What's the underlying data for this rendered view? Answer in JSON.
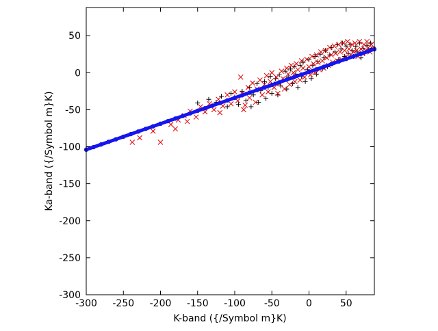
{
  "chart_data": {
    "type": "scatter",
    "xlabel": "K-band ({/Symbol m}K)",
    "ylabel": "Ka-band ({/Symbol m}K)",
    "xlim": [
      -300,
      88
    ],
    "ylim": [
      -300,
      88
    ],
    "x_ticks": [
      -300,
      -250,
      -200,
      -150,
      -100,
      -50,
      0,
      50
    ],
    "y_ticks": [
      -300,
      -250,
      -200,
      -150,
      -100,
      -50,
      0,
      50
    ],
    "x_tick_labels": [
      "-300",
      "-250",
      "-200",
      "-150",
      "-100",
      "-50",
      "0",
      "50"
    ],
    "y_tick_labels": [
      "-300",
      "-250",
      "-200",
      "-150",
      "-100",
      "-50",
      "0",
      "50"
    ],
    "grid": false,
    "legend": "none",
    "series": [
      {
        "marker": "plus",
        "color": "#000000",
        "points": [
          [
            -150,
            -41
          ],
          [
            -135,
            -36
          ],
          [
            -125,
            -40
          ],
          [
            -118,
            -32
          ],
          [
            -110,
            -46
          ],
          [
            -105,
            -28
          ],
          [
            -100,
            -33
          ],
          [
            -95,
            -43
          ],
          [
            -90,
            -25
          ],
          [
            -85,
            -38
          ],
          [
            -80,
            -20
          ],
          [
            -78,
            -46
          ],
          [
            -75,
            -30
          ],
          [
            -70,
            -15
          ],
          [
            -68,
            -40
          ],
          [
            -65,
            -24
          ],
          [
            -60,
            -12
          ],
          [
            -58,
            -35
          ],
          [
            -55,
            -20
          ],
          [
            -52,
            -5
          ],
          [
            -50,
            -28
          ],
          [
            -47,
            -15
          ],
          [
            -45,
            -8
          ],
          [
            -42,
            -30
          ],
          [
            -40,
            -3
          ],
          [
            -38,
            -18
          ],
          [
            -35,
            -10
          ],
          [
            -32,
            2
          ],
          [
            -30,
            -22
          ],
          [
            -28,
            -6
          ],
          [
            -25,
            5
          ],
          [
            -22,
            -15
          ],
          [
            -20,
            8
          ],
          [
            -18,
            -2
          ],
          [
            -15,
            -20
          ],
          [
            -12,
            10
          ],
          [
            -10,
            -5
          ],
          [
            -8,
            14
          ],
          [
            -5,
            -12
          ],
          [
            -2,
            4
          ],
          [
            0,
            18
          ],
          [
            3,
            -8
          ],
          [
            5,
            10
          ],
          [
            8,
            22
          ],
          [
            10,
            -2
          ],
          [
            12,
            15
          ],
          [
            15,
            25
          ],
          [
            18,
            5
          ],
          [
            20,
            20
          ],
          [
            22,
            30
          ],
          [
            25,
            8
          ],
          [
            28,
            24
          ],
          [
            30,
            34
          ],
          [
            32,
            12
          ],
          [
            35,
            28
          ],
          [
            38,
            38
          ],
          [
            40,
            18
          ],
          [
            43,
            32
          ],
          [
            45,
            40
          ],
          [
            48,
            22
          ],
          [
            50,
            36
          ],
          [
            53,
            26
          ],
          [
            55,
            38
          ],
          [
            58,
            30
          ],
          [
            60,
            22
          ],
          [
            63,
            35
          ],
          [
            65,
            28
          ],
          [
            68,
            40
          ],
          [
            70,
            20
          ],
          [
            73,
            33
          ],
          [
            75,
            26
          ],
          [
            78,
            37
          ],
          [
            80,
            30
          ],
          [
            83,
            40
          ],
          [
            85,
            33
          ]
        ]
      },
      {
        "marker": "cross",
        "color": "#e00000",
        "points": [
          [
            -228,
            -88
          ],
          [
            -210,
            -79
          ],
          [
            -200,
            -94
          ],
          [
            -186,
            -70
          ],
          [
            -176,
            -64
          ],
          [
            -168,
            -58
          ],
          [
            -160,
            -52
          ],
          [
            -152,
            -60
          ],
          [
            -146,
            -46
          ],
          [
            -140,
            -53
          ],
          [
            -134,
            -42
          ],
          [
            -128,
            -50
          ],
          [
            -122,
            -36
          ],
          [
            -116,
            -45
          ],
          [
            -110,
            -30
          ],
          [
            -105,
            -42
          ],
          [
            -100,
            -26
          ],
          [
            -96,
            -38
          ],
          [
            -92,
            -6
          ],
          [
            -90,
            -28
          ],
          [
            -86,
            -44
          ],
          [
            -82,
            -20
          ],
          [
            -80,
            -34
          ],
          [
            -76,
            -14
          ],
          [
            -72,
            -40
          ],
          [
            -70,
            -22
          ],
          [
            -66,
            -10
          ],
          [
            -63,
            -30
          ],
          [
            -60,
            -16
          ],
          [
            -57,
            -4
          ],
          [
            -55,
            -26
          ],
          [
            -52,
            -12
          ],
          [
            -50,
            0
          ],
          [
            -47,
            -20
          ],
          [
            -44,
            -6
          ],
          [
            -42,
            -28
          ],
          [
            -40,
            -15
          ],
          [
            -37,
            2
          ],
          [
            -35,
            -8
          ],
          [
            -33,
            -22
          ],
          [
            -30,
            6
          ],
          [
            -28,
            -2
          ],
          [
            -26,
            -16
          ],
          [
            -24,
            10
          ],
          [
            -21,
            0
          ],
          [
            -19,
            -12
          ],
          [
            -17,
            12
          ],
          [
            -15,
            4
          ],
          [
            -12,
            -10
          ],
          [
            -10,
            16
          ],
          [
            -8,
            6
          ],
          [
            -6,
            -6
          ],
          [
            -3,
            18
          ],
          [
            0,
            8
          ],
          [
            2,
            -3
          ],
          [
            4,
            22
          ],
          [
            6,
            12
          ],
          [
            8,
            0
          ],
          [
            10,
            24
          ],
          [
            12,
            14
          ],
          [
            14,
            4
          ],
          [
            16,
            28
          ],
          [
            18,
            16
          ],
          [
            20,
            6
          ],
          [
            22,
            30
          ],
          [
            24,
            20
          ],
          [
            26,
            10
          ],
          [
            28,
            34
          ],
          [
            30,
            24
          ],
          [
            32,
            14
          ],
          [
            34,
            36
          ],
          [
            36,
            26
          ],
          [
            38,
            16
          ],
          [
            40,
            38
          ],
          [
            42,
            28
          ],
          [
            44,
            18
          ],
          [
            46,
            40
          ],
          [
            48,
            30
          ],
          [
            50,
            22
          ],
          [
            52,
            42
          ],
          [
            54,
            32
          ],
          [
            56,
            24
          ],
          [
            58,
            38
          ],
          [
            60,
            28
          ],
          [
            62,
            40
          ],
          [
            64,
            30
          ],
          [
            66,
            22
          ],
          [
            68,
            42
          ],
          [
            70,
            32
          ],
          [
            72,
            26
          ],
          [
            74,
            38
          ],
          [
            76,
            30
          ],
          [
            78,
            42
          ],
          [
            80,
            34
          ],
          [
            82,
            28
          ],
          [
            84,
            38
          ],
          [
            86,
            32
          ],
          [
            -238,
            -94
          ],
          [
            -180,
            -76
          ],
          [
            -164,
            -66
          ],
          [
            -120,
            -54
          ],
          [
            -88,
            -50
          ]
        ]
      },
      {
        "marker": "filled-circle",
        "color": "#1515ee",
        "description_line": true,
        "points": [
          [
            -300,
            -104
          ],
          [
            -290,
            -100.5
          ],
          [
            -280,
            -97
          ],
          [
            -270,
            -93.5
          ],
          [
            -260,
            -90
          ],
          [
            -250,
            -86.5
          ],
          [
            -240,
            -83
          ],
          [
            -230,
            -79.5
          ],
          [
            -220,
            -76
          ],
          [
            -210,
            -72.5
          ],
          [
            -200,
            -69
          ],
          [
            -190,
            -65.5
          ],
          [
            -180,
            -62
          ],
          [
            -170,
            -58.5
          ],
          [
            -160,
            -55
          ],
          [
            -150,
            -51.5
          ],
          [
            -140,
            -48
          ],
          [
            -130,
            -44.5
          ],
          [
            -120,
            -41
          ],
          [
            -110,
            -37.5
          ],
          [
            -100,
            -34
          ],
          [
            -90,
            -30.5
          ],
          [
            -80,
            -27
          ],
          [
            -70,
            -23.5
          ],
          [
            -60,
            -20
          ],
          [
            -50,
            -16.5
          ],
          [
            -40,
            -13
          ],
          [
            -30,
            -9.5
          ],
          [
            -20,
            -6
          ],
          [
            -10,
            -2.5
          ],
          [
            0,
            1
          ],
          [
            10,
            4.5
          ],
          [
            20,
            8
          ],
          [
            30,
            11.5
          ],
          [
            40,
            15
          ],
          [
            50,
            18.5
          ],
          [
            60,
            22
          ],
          [
            70,
            25.5
          ],
          [
            80,
            29
          ],
          [
            88,
            31.8
          ]
        ]
      }
    ]
  }
}
